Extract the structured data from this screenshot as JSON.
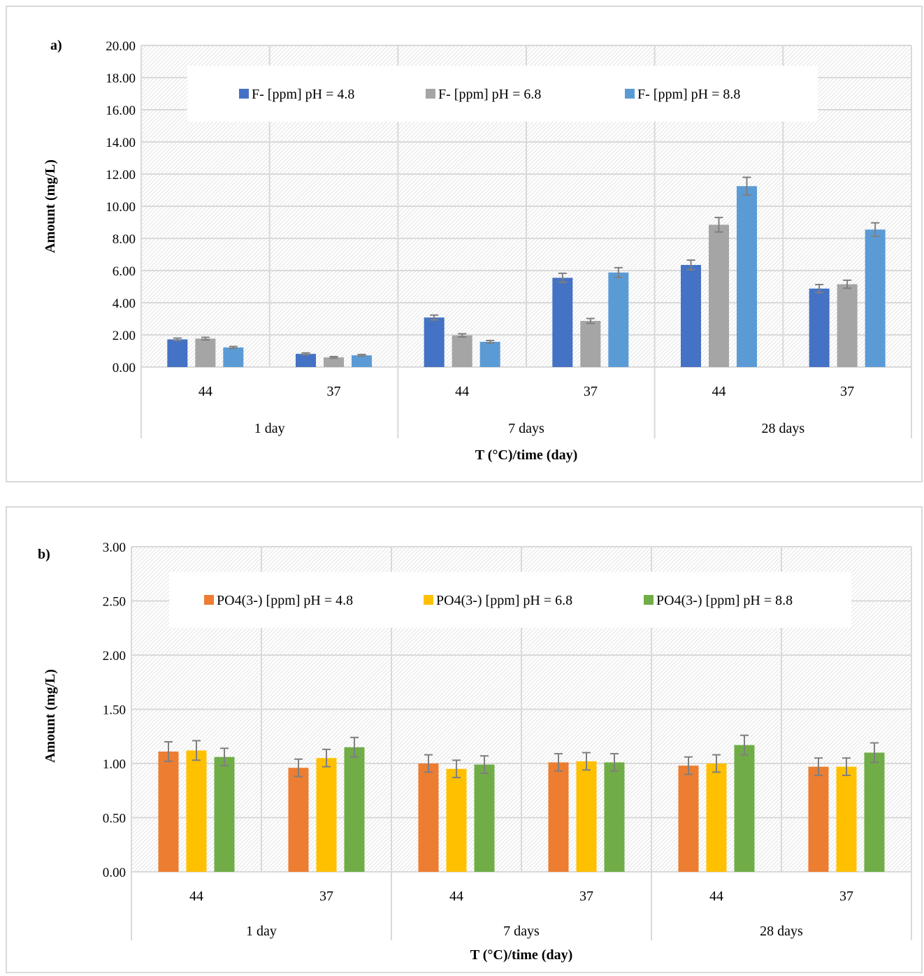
{
  "chart_data": [
    {
      "type": "bar",
      "panel_label": "a)",
      "ylabel": "Amount (mg/L)",
      "xlabel": "T (°C)/time (day)",
      "ylim": [
        0,
        20
      ],
      "ytick_step": 2,
      "ytick_decimals": 2,
      "grid": true,
      "legend_position": "top",
      "categories": [
        "44",
        "37",
        "44",
        "37",
        "44",
        "37"
      ],
      "groups": [
        {
          "label": "1 day",
          "span": 2
        },
        {
          "label": "7 days",
          "span": 2
        },
        {
          "label": "28 days",
          "span": 2
        }
      ],
      "series": [
        {
          "name": "F- [ppm] pH = 4.8",
          "color": "#4472c4",
          "values": [
            1.72,
            0.82,
            3.08,
            5.55,
            6.35,
            4.88
          ],
          "errors": [
            0.08,
            0.06,
            0.15,
            0.28,
            0.3,
            0.25
          ]
        },
        {
          "name": "F- [ppm] pH = 6.8",
          "color": "#a5a5a5",
          "values": [
            1.77,
            0.6,
            1.97,
            2.87,
            8.85,
            5.15
          ],
          "errors": [
            0.08,
            0.05,
            0.1,
            0.15,
            0.45,
            0.25
          ]
        },
        {
          "name": "F- [ppm] pH = 8.8",
          "color": "#5b9bd5",
          "values": [
            1.22,
            0.73,
            1.57,
            5.88,
            11.25,
            8.55
          ],
          "errors": [
            0.06,
            0.05,
            0.08,
            0.3,
            0.55,
            0.42
          ]
        }
      ]
    },
    {
      "type": "bar",
      "panel_label": "b)",
      "ylabel": "Amount (mg/L)",
      "xlabel": "T (°C)/time (day)",
      "ylim": [
        0,
        3
      ],
      "ytick_step": 0.5,
      "ytick_decimals": 2,
      "grid": true,
      "legend_position": "top",
      "categories": [
        "44",
        "37",
        "44",
        "37",
        "44",
        "37"
      ],
      "groups": [
        {
          "label": "1 day",
          "span": 2
        },
        {
          "label": "7 days",
          "span": 2
        },
        {
          "label": "28 days",
          "span": 2
        }
      ],
      "series": [
        {
          "name": "PO4(3-) [ppm] pH = 4.8",
          "color": "#ed7d31",
          "values": [
            1.11,
            0.96,
            1.0,
            1.01,
            0.98,
            0.97
          ],
          "errors": [
            0.09,
            0.08,
            0.08,
            0.08,
            0.08,
            0.08
          ]
        },
        {
          "name": "PO4(3-) [ppm] pH = 6.8",
          "color": "#ffc000",
          "values": [
            1.12,
            1.05,
            0.95,
            1.02,
            1.0,
            0.97
          ],
          "errors": [
            0.09,
            0.08,
            0.08,
            0.08,
            0.08,
            0.08
          ]
        },
        {
          "name": "PO4(3-) [ppm] pH = 8.8",
          "color": "#70ad47",
          "values": [
            1.06,
            1.15,
            0.99,
            1.01,
            1.17,
            1.1
          ],
          "errors": [
            0.08,
            0.09,
            0.08,
            0.08,
            0.09,
            0.09
          ]
        }
      ]
    }
  ]
}
